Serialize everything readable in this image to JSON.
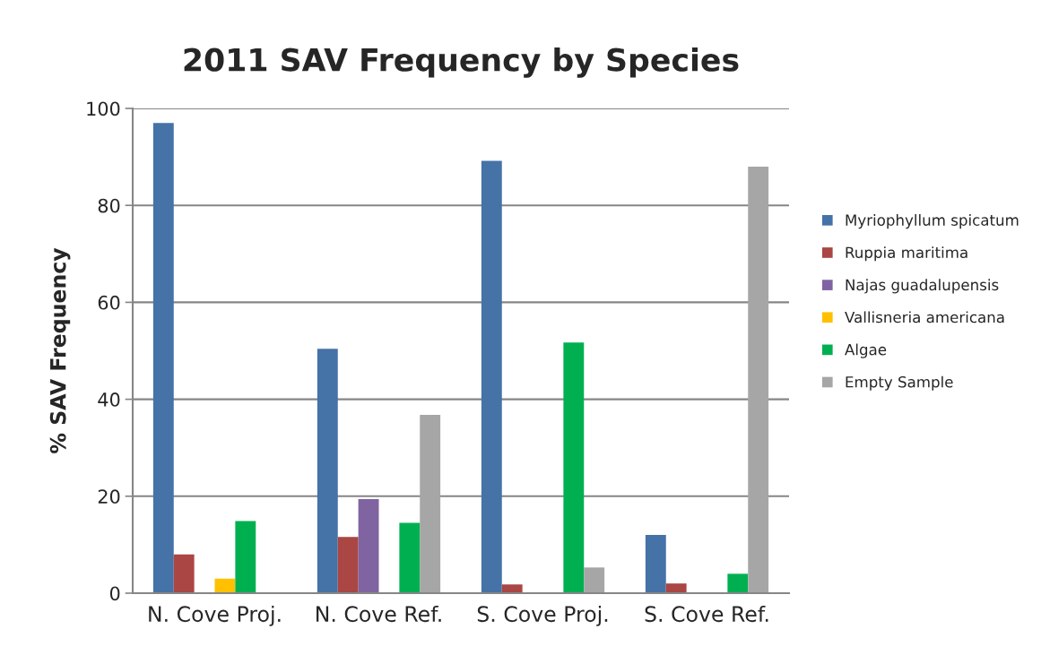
{
  "chart_data": {
    "type": "bar",
    "title": "2011 SAV Frequency by Species",
    "ylabel": "% SAV Frequency",
    "categories": [
      "N. Cove Proj.",
      "N. Cove Ref.",
      "S. Cove Proj.",
      "S. Cove Ref."
    ],
    "series": [
      {
        "name": "Myriophyllum spicatum",
        "color": "#4572a7",
        "values": [
          97.0,
          50.4,
          89.2,
          12.0
        ]
      },
      {
        "name": "Ruppia maritima",
        "color": "#aa4643",
        "values": [
          8.0,
          11.6,
          1.8,
          2.0
        ]
      },
      {
        "name": "Najas guadalupensis",
        "color": "#8064a2",
        "values": [
          null,
          19.4,
          null,
          null
        ]
      },
      {
        "name": "Vallisneria americana",
        "color": "#ffc000",
        "values": [
          3.0,
          null,
          null,
          null
        ]
      },
      {
        "name": "Algae",
        "color": "#00b050",
        "values": [
          14.9,
          14.5,
          51.7,
          4.0
        ]
      },
      {
        "name": "Empty Sample",
        "color": "#a6a6a6",
        "values": [
          null,
          36.8,
          5.3,
          88.0
        ]
      }
    ],
    "ylim": [
      0,
      100
    ],
    "yticks": [
      0,
      20,
      40,
      60,
      80,
      100
    ],
    "grid": "y",
    "legend": "right"
  }
}
